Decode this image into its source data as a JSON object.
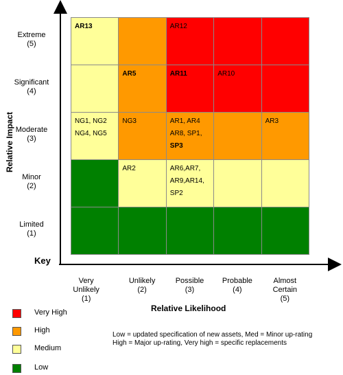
{
  "chart_data": {
    "type": "heatmap",
    "title": "",
    "xlabel": "Relative Likelihood",
    "ylabel": "Relative Impact",
    "x_categories": [
      "Very\nUnlikely\n(1)",
      "Unlikely\n(2)",
      "Possible\n(3)",
      "Probable\n(4)",
      "Almost\nCertain\n(5)"
    ],
    "y_categories": [
      "Extreme\n(5)",
      "Significant\n(4)",
      "Moderate\n(3)",
      "Minor\n(2)",
      "Limited\n(1)"
    ],
    "colors": {
      "very_high": "#ff0000",
      "high": "#ff9900",
      "medium": "#ffff99",
      "low": "#008000"
    },
    "grid": [
      [
        "medium",
        "high",
        "very_high",
        "very_high",
        "very_high"
      ],
      [
        "medium",
        "high",
        "very_high",
        "very_high",
        "very_high"
      ],
      [
        "medium",
        "high",
        "high",
        "high",
        "high"
      ],
      [
        "low",
        "medium",
        "medium",
        "medium",
        "medium"
      ],
      [
        "low",
        "low",
        "low",
        "low",
        "low"
      ]
    ],
    "cells": [
      {
        "row": 0,
        "col": 0,
        "text": "AR13",
        "bold": true
      },
      {
        "row": 0,
        "col": 2,
        "text": "AR12",
        "bold": false
      },
      {
        "row": 1,
        "col": 1,
        "text": "AR5",
        "bold": true
      },
      {
        "row": 1,
        "col": 2,
        "text": "AR11",
        "bold": true
      },
      {
        "row": 1,
        "col": 3,
        "text": "AR10",
        "bold": false
      },
      {
        "row": 2,
        "col": 0,
        "text": "NG1, NG2\nNG4, NG5",
        "bold": false
      },
      {
        "row": 2,
        "col": 1,
        "text": "NG3",
        "bold": false
      },
      {
        "row": 2,
        "col": 2,
        "text": "AR1, AR4\nAR8, SP1,",
        "extra_bold": "SP3",
        "bold": false
      },
      {
        "row": 2,
        "col": 4,
        "text": "AR3",
        "bold": false
      },
      {
        "row": 3,
        "col": 1,
        "text": "AR2",
        "bold": false
      },
      {
        "row": 3,
        "col": 2,
        "text": "AR6,AR7,\nAR9,AR14,\nSP2",
        "bold": false
      }
    ]
  },
  "key": {
    "title": "Key",
    "items": [
      {
        "label": "Very High",
        "color": "#ff0000"
      },
      {
        "label": "High",
        "color": "#ff9900"
      },
      {
        "label": "Medium",
        "color": "#ffff99"
      },
      {
        "label": "Low",
        "color": "#008000"
      }
    ]
  },
  "notes": {
    "line1": "Low = updated specification of new assets, Med = Minor up-rating",
    "line2": "High = Major up-rating, Very high = specific replacements"
  }
}
